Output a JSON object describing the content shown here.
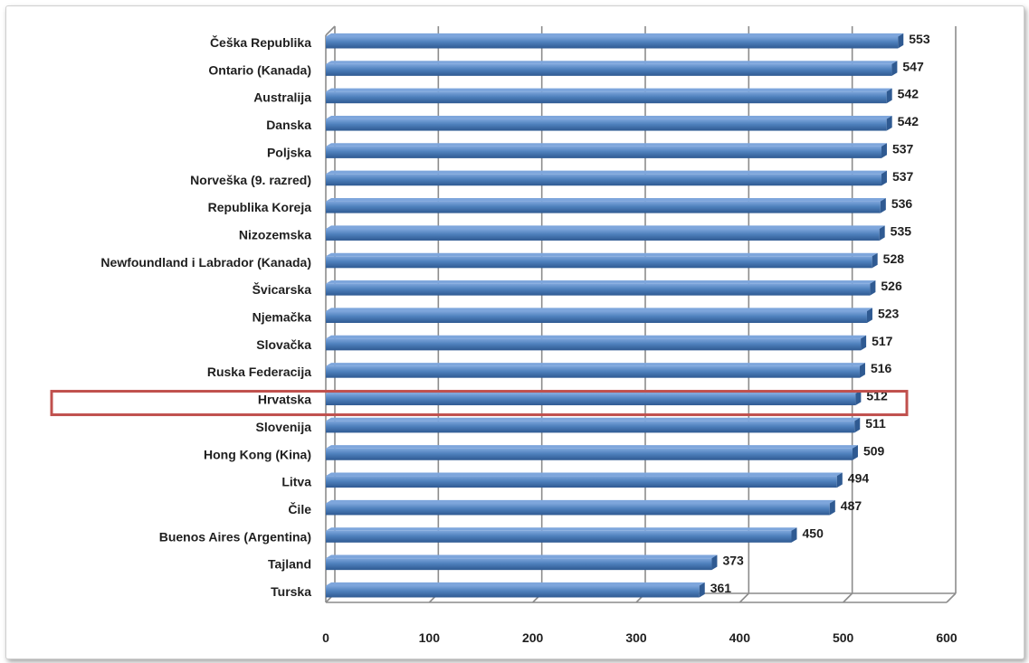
{
  "chart_data": {
    "type": "bar",
    "orientation": "horizontal",
    "categories": [
      "Češka Republika",
      "Ontario (Kanada)",
      "Australija",
      "Danska",
      "Poljska",
      "Norveška (9. razred)",
      "Republika Koreja",
      "Nizozemska",
      "Newfoundland i Labrador (Kanada)",
      "Švicarska",
      "Njemačka",
      "Slovačka",
      "Ruska Federacija",
      "Hrvatska",
      "Slovenija",
      "Hong Kong (Kina)",
      "Litva",
      "Čile",
      "Buenos Aires (Argentina)",
      "Tajland",
      "Turska"
    ],
    "values": [
      553,
      547,
      542,
      542,
      537,
      537,
      536,
      535,
      528,
      526,
      523,
      517,
      516,
      512,
      511,
      509,
      494,
      487,
      450,
      373,
      361
    ],
    "xlim": [
      0,
      600
    ],
    "xticks": [
      "0",
      "100",
      "200",
      "300",
      "400",
      "500",
      "600"
    ],
    "grid": true,
    "three_d": true,
    "highlighted_category": "Hrvatska",
    "colors": {
      "bar": "#4f81bd",
      "bar_light": "#7ea6dc",
      "bar_dark": "#2f5a92",
      "highlight_box": "#c0504d",
      "grid": "#8c8c8c"
    }
  }
}
